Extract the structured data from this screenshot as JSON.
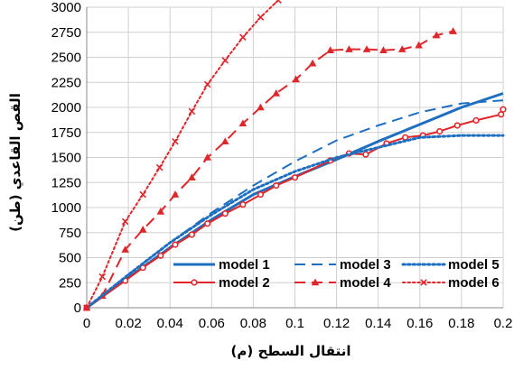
{
  "chart_data": {
    "type": "line",
    "title": "",
    "xlabel": "انتقال السطح (م)",
    "ylabel": "القص القاعدي (طن)",
    "xlim": [
      0,
      0.2
    ],
    "ylim": [
      0,
      3000
    ],
    "x_ticks": [
      "0",
      "0.02",
      "0.04",
      "0.06",
      "0.08",
      "0.1",
      "0.12",
      "0.14",
      "0.16",
      "0.18",
      "0.2"
    ],
    "y_ticks": [
      "0",
      "250",
      "500",
      "750",
      "1000",
      "1250",
      "1500",
      "1750",
      "2000",
      "2250",
      "2500",
      "2750",
      "3000"
    ],
    "grid": true,
    "legend_position": "bottom-right",
    "series": [
      {
        "name": "model 1",
        "color": "#1f6fc1",
        "style": "solid",
        "marker": "none",
        "x": [
          0,
          0.02,
          0.04,
          0.06,
          0.08,
          0.1,
          0.12,
          0.14,
          0.16,
          0.18,
          0.2
        ],
        "y": [
          0,
          300,
          600,
          880,
          1130,
          1310,
          1480,
          1660,
          1830,
          2000,
          2140
        ]
      },
      {
        "name": "model 2",
        "color": "#e0262a",
        "style": "solid",
        "marker": "circle",
        "x": [
          0,
          0.0185,
          0.027,
          0.0355,
          0.0425,
          0.0505,
          0.058,
          0.0665,
          0.075,
          0.0835,
          0.091,
          0.1,
          0.117,
          0.126,
          0.134,
          0.144,
          0.153,
          0.1615,
          0.1695,
          0.178,
          0.187,
          0.199,
          0.2
        ],
        "y": [
          0,
          270,
          400,
          520,
          630,
          730,
          840,
          940,
          1030,
          1130,
          1220,
          1300,
          1470,
          1540,
          1530,
          1640,
          1700,
          1720,
          1760,
          1820,
          1870,
          1930,
          1980
        ]
      },
      {
        "name": "model 3",
        "color": "#1f6fc1",
        "style": "dashed",
        "marker": "none",
        "x": [
          0,
          0.02,
          0.04,
          0.06,
          0.08,
          0.1,
          0.12,
          0.14,
          0.16,
          0.18,
          0.2
        ],
        "y": [
          0,
          330,
          650,
          950,
          1220,
          1460,
          1670,
          1820,
          1950,
          2040,
          2070
        ]
      },
      {
        "name": "model 4",
        "color": "#e0262a",
        "style": "dashed",
        "marker": "triangle",
        "x": [
          0,
          0.0075,
          0.0185,
          0.027,
          0.0355,
          0.0425,
          0.0505,
          0.058,
          0.0665,
          0.075,
          0.0835,
          0.091,
          0.1005,
          0.1085,
          0.117,
          0.126,
          0.1345,
          0.1425,
          0.1515,
          0.1595,
          0.168,
          0.176
        ],
        "y": [
          0,
          120,
          580,
          780,
          960,
          1130,
          1300,
          1500,
          1660,
          1840,
          2000,
          2140,
          2280,
          2440,
          2570,
          2580,
          2580,
          2570,
          2580,
          2620,
          2720,
          2760
        ]
      },
      {
        "name": "model 5",
        "color": "#1f6fc1",
        "style": "dotted",
        "marker": "none",
        "x": [
          0,
          0.02,
          0.04,
          0.06,
          0.08,
          0.1,
          0.12,
          0.14,
          0.16,
          0.18,
          0.2
        ],
        "y": [
          0,
          330,
          650,
          930,
          1180,
          1360,
          1500,
          1600,
          1700,
          1720,
          1720
        ]
      },
      {
        "name": "model 6",
        "color": "#e0262a",
        "style": "dotted",
        "marker": "x",
        "x": [
          0,
          0.0075,
          0.0185,
          0.027,
          0.035,
          0.0425,
          0.0505,
          0.058,
          0.0665,
          0.075,
          0.0835,
          0.092
        ],
        "y": [
          0,
          310,
          860,
          1130,
          1400,
          1660,
          1960,
          2230,
          2470,
          2700,
          2900,
          3070
        ]
      }
    ]
  }
}
